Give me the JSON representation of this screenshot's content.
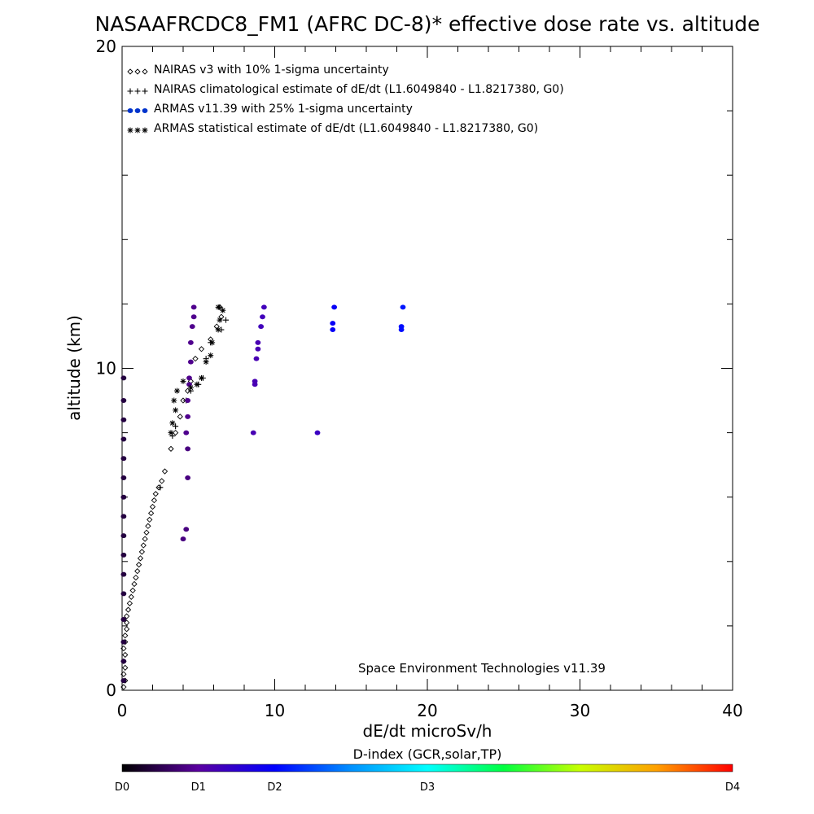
{
  "chart_data": {
    "type": "scatter",
    "title": "NASAAFRCDC8_FM1 (AFRC DC-8)* effective dose rate vs. altitude",
    "xlabel": "dE/dt microSv/h",
    "ylabel": "altitude (km)",
    "xlim": [
      0,
      40
    ],
    "ylim": [
      0,
      20
    ],
    "x_ticks": [
      "0",
      "10",
      "20",
      "30",
      "40"
    ],
    "y_ticks": [
      "0",
      "10",
      "20"
    ],
    "annotation": "Space Environment Technologies v11.39",
    "legend": [
      {
        "symbol": "◇◇◇",
        "label": "NAIRAS v3 with 10% 1-sigma uncertainty"
      },
      {
        "symbol": "+++",
        "label": "NAIRAS climatological estimate of dE/dt (L1.6049840 - L1.8217380, G0)"
      },
      {
        "symbol": "●●●",
        "label": "ARMAS v11.39 with 25% 1-sigma uncertainty"
      },
      {
        "symbol": "***",
        "label": "ARMAS statistical estimate of dE/dt (L1.6049840 - L1.8217380, G0)"
      }
    ],
    "colorbar": {
      "title": "D-index (GCR,solar,TP)",
      "labels": [
        {
          "text": "D0",
          "pos": 0
        },
        {
          "text": "D1",
          "pos": 0.125
        },
        {
          "text": "D2",
          "pos": 0.25
        },
        {
          "text": "D3",
          "pos": 0.5
        },
        {
          "text": "D4",
          "pos": 1
        }
      ]
    },
    "series": [
      {
        "name": "NAIRAS v3 with 10% 1-sigma uncertainty",
        "marker": "diamond",
        "color": "#000000",
        "points": [
          [
            0.1,
            0.1
          ],
          [
            0.2,
            0.3
          ],
          [
            0.1,
            0.5
          ],
          [
            0.2,
            0.7
          ],
          [
            0.1,
            0.9
          ],
          [
            0.2,
            1.1
          ],
          [
            0.1,
            1.3
          ],
          [
            0.2,
            1.5
          ],
          [
            0.2,
            1.7
          ],
          [
            0.3,
            1.9
          ],
          [
            0.3,
            2.1
          ],
          [
            0.3,
            2.3
          ],
          [
            0.4,
            2.5
          ],
          [
            0.5,
            2.7
          ],
          [
            0.6,
            2.9
          ],
          [
            0.7,
            3.1
          ],
          [
            0.8,
            3.3
          ],
          [
            0.9,
            3.5
          ],
          [
            1.0,
            3.7
          ],
          [
            1.1,
            3.9
          ],
          [
            1.2,
            4.1
          ],
          [
            1.3,
            4.3
          ],
          [
            1.4,
            4.5
          ],
          [
            1.5,
            4.7
          ],
          [
            1.6,
            4.9
          ],
          [
            1.7,
            5.1
          ],
          [
            1.8,
            5.3
          ],
          [
            1.9,
            5.5
          ],
          [
            2.0,
            5.7
          ],
          [
            2.1,
            5.9
          ],
          [
            2.2,
            6.1
          ],
          [
            2.4,
            6.3
          ],
          [
            2.6,
            6.5
          ],
          [
            2.8,
            6.8
          ],
          [
            3.2,
            7.5
          ],
          [
            3.5,
            8.0
          ],
          [
            3.8,
            8.5
          ],
          [
            4.0,
            9.0
          ],
          [
            4.3,
            9.3
          ],
          [
            4.5,
            9.6
          ],
          [
            4.8,
            10.3
          ],
          [
            5.2,
            10.6
          ],
          [
            5.8,
            10.9
          ],
          [
            6.2,
            11.3
          ],
          [
            6.5,
            11.6
          ],
          [
            6.4,
            11.9
          ]
        ]
      },
      {
        "name": "NAIRAS climatological estimate of dE/dt (L1.6049840 - L1.8217380, G0)",
        "marker": "plus",
        "color": "#000000",
        "points": [
          [
            2.5,
            6.3
          ],
          [
            3.3,
            7.9
          ],
          [
            3.5,
            8.2
          ],
          [
            4.2,
            9.0
          ],
          [
            4.5,
            9.3
          ],
          [
            5.0,
            9.5
          ],
          [
            5.3,
            9.7
          ],
          [
            5.5,
            10.3
          ],
          [
            5.8,
            10.8
          ],
          [
            6.5,
            11.2
          ],
          [
            6.8,
            11.5
          ],
          [
            6.4,
            11.9
          ]
        ]
      },
      {
        "name": "ARMAS v11.39 with 25% 1-sigma uncertainty",
        "marker": "dot",
        "points": [
          [
            0.1,
            0.3,
            0.05
          ],
          [
            0.1,
            0.9,
            0.05
          ],
          [
            0.1,
            1.5,
            0.05
          ],
          [
            0.1,
            2.2,
            0.05
          ],
          [
            0.1,
            3.0,
            0.05
          ],
          [
            0.1,
            3.6,
            0.05
          ],
          [
            0.1,
            4.2,
            0.05
          ],
          [
            0.1,
            4.8,
            0.05
          ],
          [
            0.1,
            5.4,
            0.05
          ],
          [
            0.1,
            6.0,
            0.05
          ],
          [
            0.1,
            6.6,
            0.05
          ],
          [
            0.1,
            7.2,
            0.05
          ],
          [
            0.1,
            7.8,
            0.05
          ],
          [
            0.1,
            8.4,
            0.05
          ],
          [
            0.1,
            9.0,
            0.05
          ],
          [
            0.1,
            9.7,
            0.05
          ],
          [
            4.0,
            4.7,
            0.1
          ],
          [
            4.2,
            5.0,
            0.1
          ],
          [
            4.3,
            6.6,
            0.1
          ],
          [
            4.3,
            7.5,
            0.1
          ],
          [
            4.2,
            8.0,
            0.11
          ],
          [
            4.3,
            8.5,
            0.11
          ],
          [
            4.3,
            9.0,
            0.11
          ],
          [
            4.4,
            9.5,
            0.11
          ],
          [
            4.4,
            9.7,
            0.11
          ],
          [
            4.5,
            10.2,
            0.11
          ],
          [
            4.5,
            10.8,
            0.11
          ],
          [
            4.6,
            11.3,
            0.11
          ],
          [
            4.7,
            11.6,
            0.11
          ],
          [
            4.7,
            11.9,
            0.11
          ],
          [
            8.6,
            8.0,
            0.15
          ],
          [
            8.7,
            9.6,
            0.15
          ],
          [
            8.7,
            9.5,
            0.15
          ],
          [
            8.8,
            10.3,
            0.15
          ],
          [
            8.9,
            10.6,
            0.15
          ],
          [
            8.9,
            10.8,
            0.15
          ],
          [
            9.1,
            11.3,
            0.16
          ],
          [
            9.2,
            11.6,
            0.16
          ],
          [
            9.3,
            11.9,
            0.16
          ],
          [
            12.8,
            8.0,
            0.17
          ],
          [
            13.8,
            11.2,
            0.24
          ],
          [
            13.8,
            11.4,
            0.24
          ],
          [
            13.9,
            11.9,
            0.24
          ],
          [
            18.3,
            11.2,
            0.26
          ],
          [
            18.3,
            11.3,
            0.26
          ],
          [
            18.4,
            11.9,
            0.27
          ]
        ]
      },
      {
        "name": "ARMAS statistical estimate of dE/dt (L1.6049840 - L1.8217380, G0)",
        "marker": "asterisk",
        "color": "#000000",
        "points": [
          [
            3.2,
            8.0
          ],
          [
            3.3,
            8.3
          ],
          [
            3.5,
            8.7
          ],
          [
            3.4,
            9.0
          ],
          [
            3.6,
            9.3
          ],
          [
            4.0,
            9.6
          ],
          [
            4.5,
            9.4
          ],
          [
            4.9,
            9.5
          ],
          [
            5.2,
            9.7
          ],
          [
            5.5,
            10.2
          ],
          [
            5.8,
            10.4
          ],
          [
            5.9,
            10.8
          ],
          [
            6.3,
            11.2
          ],
          [
            6.4,
            11.5
          ],
          [
            6.3,
            11.9
          ],
          [
            6.6,
            11.8
          ]
        ]
      }
    ]
  }
}
